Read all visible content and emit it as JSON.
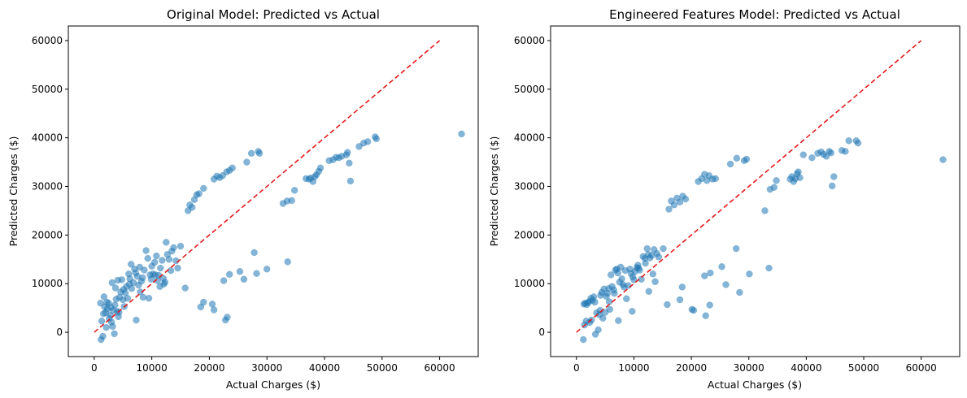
{
  "chart_data": [
    {
      "type": "scatter",
      "title": "Original Model: Predicted vs Actual",
      "xlabel": "Actual Charges ($)",
      "ylabel": "Predicted Charges ($)",
      "xlim": [
        -4500,
        66700
      ],
      "ylim": [
        -5000,
        63000
      ],
      "xticks": [
        "0",
        "10000",
        "20000",
        "30000",
        "40000",
        "50000",
        "60000"
      ],
      "xtick_values": [
        0,
        10000,
        20000,
        30000,
        40000,
        50000,
        60000
      ],
      "yticks": [
        "0",
        "10000",
        "20000",
        "30000",
        "40000",
        "50000",
        "60000"
      ],
      "ytick_values": [
        0,
        10000,
        20000,
        30000,
        40000,
        50000,
        60000
      ],
      "reference_line": {
        "x": [
          0,
          60000
        ],
        "y": [
          0,
          60000
        ],
        "color": "#e41a1c",
        "style": "dashed"
      },
      "point_color": "#1f77b4",
      "grid": false,
      "points": [
        [
          1200,
          -1500
        ],
        [
          1500,
          -800
        ],
        [
          1300,
          2300
        ],
        [
          1600,
          3800
        ],
        [
          1800,
          5200
        ],
        [
          2000,
          4000
        ],
        [
          2200,
          6200
        ],
        [
          1100,
          6000
        ],
        [
          1700,
          7300
        ],
        [
          2500,
          6000
        ],
        [
          2300,
          4800
        ],
        [
          2800,
          3500
        ],
        [
          3000,
          2100
        ],
        [
          3200,
          1200
        ],
        [
          2100,
          1000
        ],
        [
          3500,
          -300
        ],
        [
          2600,
          2800
        ],
        [
          3300,
          4500
        ],
        [
          3800,
          6800
        ],
        [
          3600,
          5600
        ],
        [
          4000,
          4300
        ],
        [
          4200,
          3200
        ],
        [
          4400,
          7200
        ],
        [
          4600,
          8300
        ],
        [
          4100,
          10700
        ],
        [
          4800,
          10800
        ],
        [
          3100,
          10200
        ],
        [
          5000,
          6700
        ],
        [
          5200,
          5300
        ],
        [
          5400,
          8100
        ],
        [
          5600,
          9400
        ],
        [
          5800,
          7000
        ],
        [
          6000,
          12000
        ],
        [
          6200,
          11000
        ],
        [
          6500,
          9000
        ],
        [
          6800,
          10200
        ],
        [
          6400,
          14000
        ],
        [
          7000,
          13000
        ],
        [
          7200,
          12200
        ],
        [
          7500,
          11500
        ],
        [
          7700,
          9700
        ],
        [
          7900,
          13400
        ],
        [
          8000,
          8300
        ],
        [
          8200,
          10500
        ],
        [
          8500,
          7200
        ],
        [
          8700,
          12800
        ],
        [
          9000,
          16800
        ],
        [
          9300,
          15200
        ],
        [
          9500,
          7000
        ],
        [
          9700,
          11800
        ],
        [
          10000,
          13600
        ],
        [
          10200,
          12000
        ],
        [
          10500,
          14400
        ],
        [
          10800,
          15700
        ],
        [
          11000,
          10600
        ],
        [
          11200,
          11700
        ],
        [
          11500,
          13200
        ],
        [
          11800,
          14800
        ],
        [
          12000,
          11100
        ],
        [
          12300,
          10300
        ],
        [
          12500,
          18500
        ],
        [
          12700,
          16000
        ],
        [
          13000,
          15000
        ],
        [
          13300,
          12700
        ],
        [
          13500,
          16700
        ],
        [
          13800,
          17400
        ],
        [
          14200,
          14700
        ],
        [
          14500,
          13200
        ],
        [
          15000,
          17700
        ],
        [
          7300,
          2500
        ],
        [
          2900,
          5100
        ],
        [
          4300,
          4100
        ],
        [
          5100,
          8800
        ],
        [
          6100,
          9900
        ],
        [
          8400,
          11200
        ],
        [
          9900,
          10900
        ],
        [
          11400,
          9400
        ],
        [
          12100,
          9900
        ],
        [
          10600,
          11800
        ],
        [
          3700,
          9100
        ],
        [
          15800,
          9100
        ],
        [
          16300,
          25000
        ],
        [
          16600,
          26200
        ],
        [
          17000,
          25700
        ],
        [
          17400,
          27300
        ],
        [
          17800,
          28300
        ],
        [
          18200,
          28500
        ],
        [
          19000,
          29600
        ],
        [
          20800,
          31500
        ],
        [
          21300,
          32100
        ],
        [
          21800,
          31800
        ],
        [
          22300,
          32200
        ],
        [
          23000,
          33000
        ],
        [
          23500,
          33300
        ],
        [
          24000,
          33800
        ],
        [
          26500,
          35000
        ],
        [
          27300,
          36800
        ],
        [
          28500,
          37200
        ],
        [
          28700,
          36800
        ],
        [
          18500,
          5200
        ],
        [
          19000,
          6200
        ],
        [
          20500,
          5800
        ],
        [
          20800,
          4600
        ],
        [
          22500,
          10600
        ],
        [
          22800,
          2500
        ],
        [
          23100,
          3100
        ],
        [
          23500,
          11900
        ],
        [
          25300,
          12500
        ],
        [
          26000,
          10900
        ],
        [
          27800,
          16400
        ],
        [
          28200,
          12100
        ],
        [
          30000,
          13000
        ],
        [
          32800,
          26500
        ],
        [
          33500,
          27000
        ],
        [
          33600,
          14500
        ],
        [
          34300,
          27100
        ],
        [
          34800,
          29200
        ],
        [
          36800,
          31600
        ],
        [
          37300,
          31500
        ],
        [
          37600,
          31700
        ],
        [
          38000,
          31000
        ],
        [
          38300,
          32000
        ],
        [
          38600,
          32400
        ],
        [
          39000,
          33100
        ],
        [
          39300,
          33800
        ],
        [
          40800,
          35300
        ],
        [
          41500,
          35500
        ],
        [
          42500,
          35900
        ],
        [
          43000,
          36200
        ],
        [
          43800,
          36500
        ],
        [
          44300,
          34800
        ],
        [
          44500,
          31100
        ],
        [
          44000,
          37000
        ],
        [
          46000,
          38200
        ],
        [
          46800,
          38900
        ],
        [
          47500,
          39200
        ],
        [
          48800,
          40200
        ],
        [
          49000,
          39800
        ],
        [
          63800,
          40800
        ],
        [
          42000,
          36000
        ]
      ]
    },
    {
      "type": "scatter",
      "title": "Engineered Features Model: Predicted vs Actual",
      "xlabel": "Actual Charges ($)",
      "ylabel": "Predicted Charges ($)",
      "xlim": [
        -4500,
        66700
      ],
      "ylim": [
        -5000,
        63000
      ],
      "xticks": [
        "0",
        "10000",
        "20000",
        "30000",
        "40000",
        "50000",
        "60000"
      ],
      "xtick_values": [
        0,
        10000,
        20000,
        30000,
        40000,
        50000,
        60000
      ],
      "yticks": [
        "0",
        "10000",
        "20000",
        "30000",
        "40000",
        "50000",
        "60000"
      ],
      "ytick_values": [
        0,
        10000,
        20000,
        30000,
        40000,
        50000,
        60000
      ],
      "reference_line": {
        "x": [
          0,
          60000
        ],
        "y": [
          0,
          60000
        ],
        "color": "#e41a1c",
        "style": "dashed"
      },
      "point_color": "#1f77b4",
      "grid": false,
      "points": [
        [
          1200,
          -1500
        ],
        [
          1400,
          1500
        ],
        [
          1300,
          5800
        ],
        [
          1500,
          6000
        ],
        [
          1800,
          5700
        ],
        [
          2000,
          6100
        ],
        [
          2200,
          6300
        ],
        [
          1700,
          2300
        ],
        [
          2300,
          2000
        ],
        [
          2600,
          2500
        ],
        [
          2800,
          6600
        ],
        [
          3000,
          7300
        ],
        [
          3200,
          6200
        ],
        [
          3300,
          -400
        ],
        [
          3500,
          4000
        ],
        [
          3800,
          500
        ],
        [
          4000,
          3600
        ],
        [
          4200,
          7600
        ],
        [
          4400,
          8200
        ],
        [
          4600,
          2900
        ],
        [
          4800,
          8900
        ],
        [
          5000,
          4100
        ],
        [
          5200,
          7400
        ],
        [
          5400,
          8000
        ],
        [
          5600,
          9000
        ],
        [
          5800,
          4700
        ],
        [
          6000,
          11800
        ],
        [
          6200,
          9400
        ],
        [
          6500,
          8700
        ],
        [
          6800,
          12800
        ],
        [
          7000,
          13000
        ],
        [
          7200,
          12200
        ],
        [
          7500,
          10300
        ],
        [
          7700,
          13400
        ],
        [
          7900,
          11000
        ],
        [
          8100,
          9800
        ],
        [
          8500,
          12700
        ],
        [
          8700,
          6900
        ],
        [
          9000,
          9600
        ],
        [
          9300,
          13000
        ],
        [
          9500,
          12100
        ],
        [
          9700,
          4300
        ],
        [
          10000,
          10800
        ],
        [
          10200,
          12500
        ],
        [
          10500,
          13300
        ],
        [
          10800,
          13200
        ],
        [
          11000,
          12800
        ],
        [
          11300,
          10900
        ],
        [
          11600,
          15600
        ],
        [
          12000,
          14200
        ],
        [
          12300,
          17200
        ],
        [
          12500,
          16000
        ],
        [
          12800,
          15300
        ],
        [
          13100,
          15800
        ],
        [
          13500,
          17000
        ],
        [
          13700,
          10400
        ],
        [
          14000,
          16200
        ],
        [
          14300,
          15500
        ],
        [
          15100,
          17200
        ],
        [
          7300,
          2400
        ],
        [
          4100,
          4500
        ],
        [
          5700,
          6300
        ],
        [
          6600,
          8000
        ],
        [
          8300,
          9300
        ],
        [
          9800,
          11400
        ],
        [
          10700,
          13800
        ],
        [
          11900,
          15200
        ],
        [
          12600,
          8400
        ],
        [
          13300,
          12000
        ],
        [
          2500,
          7000
        ],
        [
          15800,
          5700
        ],
        [
          16100,
          25300
        ],
        [
          16500,
          27000
        ],
        [
          17000,
          26200
        ],
        [
          17500,
          27600
        ],
        [
          18000,
          26800
        ],
        [
          18500,
          28000
        ],
        [
          19000,
          27400
        ],
        [
          21200,
          31000
        ],
        [
          21800,
          31600
        ],
        [
          22300,
          32500
        ],
        [
          22700,
          31200
        ],
        [
          23100,
          32200
        ],
        [
          23700,
          31500
        ],
        [
          24200,
          31600
        ],
        [
          26800,
          34600
        ],
        [
          27900,
          35800
        ],
        [
          29200,
          35300
        ],
        [
          29600,
          35600
        ],
        [
          18000,
          6700
        ],
        [
          18400,
          9300
        ],
        [
          20100,
          4700
        ],
        [
          20400,
          4500
        ],
        [
          22300,
          11600
        ],
        [
          22500,
          3400
        ],
        [
          23200,
          5600
        ],
        [
          23300,
          12200
        ],
        [
          25300,
          13500
        ],
        [
          26000,
          9800
        ],
        [
          27800,
          17200
        ],
        [
          28400,
          8200
        ],
        [
          30100,
          12000
        ],
        [
          32800,
          25000
        ],
        [
          33500,
          13200
        ],
        [
          33700,
          29400
        ],
        [
          34400,
          29800
        ],
        [
          34800,
          31200
        ],
        [
          37200,
          31500
        ],
        [
          37500,
          32000
        ],
        [
          37800,
          31000
        ],
        [
          38100,
          31600
        ],
        [
          38400,
          32600
        ],
        [
          38600,
          33000
        ],
        [
          38900,
          31800
        ],
        [
          39500,
          36500
        ],
        [
          41000,
          35900
        ],
        [
          42000,
          36800
        ],
        [
          42600,
          37100
        ],
        [
          43000,
          36600
        ],
        [
          43500,
          36200
        ],
        [
          44000,
          37200
        ],
        [
          44300,
          36900
        ],
        [
          44500,
          30100
        ],
        [
          44800,
          32000
        ],
        [
          46200,
          37400
        ],
        [
          46800,
          37200
        ],
        [
          47400,
          39400
        ],
        [
          48700,
          39400
        ],
        [
          49000,
          38900
        ],
        [
          63800,
          35500
        ]
      ]
    }
  ]
}
